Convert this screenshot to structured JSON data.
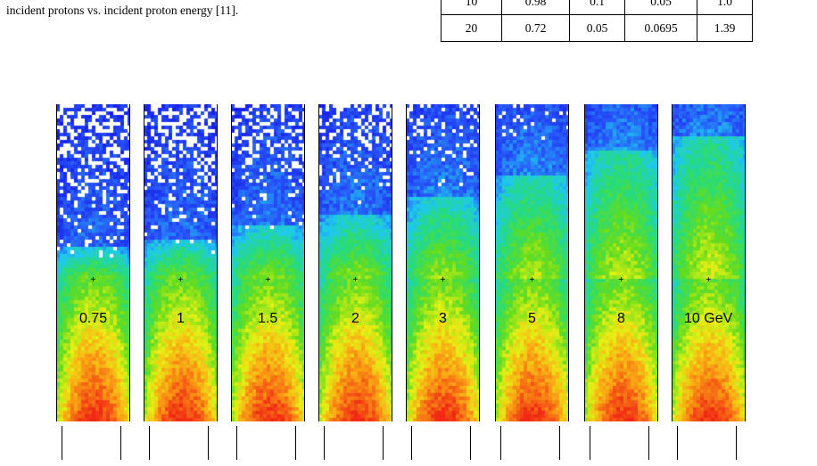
{
  "caption": "incident protons vs. incident proton energy [11].",
  "table": {
    "rows": [
      [
        "10",
        "0.98",
        "0.1",
        "0.05",
        "1.0"
      ],
      [
        "20",
        "0.72",
        "0.05",
        "0.0695",
        "1.39"
      ]
    ]
  },
  "figure": {
    "panels": [
      {
        "label": "0.75",
        "energy_gev": 0.75
      },
      {
        "label": "1",
        "energy_gev": 1
      },
      {
        "label": "1.5",
        "energy_gev": 1.5
      },
      {
        "label": "2",
        "energy_gev": 2
      },
      {
        "label": "3",
        "energy_gev": 3
      },
      {
        "label": "5",
        "energy_gev": 5
      },
      {
        "label": "8",
        "energy_gev": 8
      },
      {
        "label": "10 GeV",
        "energy_gev": 10
      }
    ],
    "center_marker": "+"
  }
}
